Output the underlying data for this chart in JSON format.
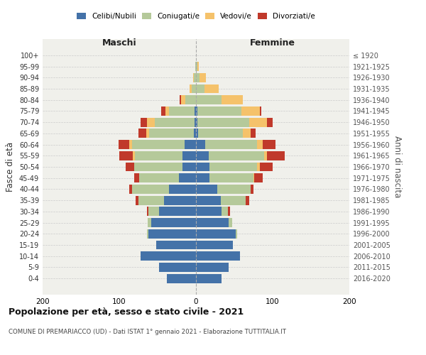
{
  "age_groups": [
    "100+",
    "95-99",
    "90-94",
    "85-89",
    "80-84",
    "75-79",
    "70-74",
    "65-69",
    "60-64",
    "55-59",
    "50-54",
    "45-49",
    "40-44",
    "35-39",
    "30-34",
    "25-29",
    "20-24",
    "15-19",
    "10-14",
    "5-9",
    "0-4"
  ],
  "birth_years": [
    "≤ 1920",
    "1921-1925",
    "1926-1930",
    "1931-1935",
    "1936-1940",
    "1941-1945",
    "1946-1950",
    "1951-1955",
    "1956-1960",
    "1961-1965",
    "1966-1970",
    "1971-1975",
    "1976-1980",
    "1981-1985",
    "1986-1990",
    "1991-1995",
    "1996-2000",
    "2001-2005",
    "2006-2010",
    "2011-2015",
    "2016-2020"
  ],
  "males_celibi": [
    0,
    0,
    0,
    0,
    0,
    2,
    2,
    3,
    15,
    18,
    18,
    22,
    35,
    42,
    48,
    58,
    62,
    52,
    72,
    48,
    38
  ],
  "males_coniugati": [
    0,
    1,
    3,
    6,
    14,
    33,
    52,
    58,
    68,
    62,
    63,
    52,
    48,
    33,
    14,
    5,
    2,
    0,
    0,
    0,
    0
  ],
  "males_vedovi": [
    0,
    0,
    1,
    2,
    5,
    5,
    10,
    4,
    4,
    2,
    0,
    0,
    0,
    0,
    0,
    0,
    0,
    0,
    0,
    0,
    0
  ],
  "males_divorziati": [
    0,
    0,
    0,
    0,
    2,
    5,
    8,
    10,
    14,
    18,
    11,
    7,
    4,
    4,
    2,
    0,
    0,
    0,
    0,
    0,
    0
  ],
  "females_nubili": [
    0,
    0,
    0,
    0,
    0,
    2,
    2,
    3,
    12,
    17,
    18,
    18,
    28,
    32,
    33,
    43,
    52,
    48,
    57,
    43,
    33
  ],
  "females_coniugate": [
    0,
    2,
    5,
    11,
    33,
    57,
    67,
    58,
    68,
    72,
    62,
    57,
    43,
    33,
    9,
    4,
    2,
    0,
    0,
    0,
    0
  ],
  "females_vedove": [
    0,
    2,
    8,
    19,
    28,
    24,
    24,
    10,
    7,
    4,
    3,
    1,
    0,
    0,
    0,
    0,
    0,
    0,
    0,
    0,
    0
  ],
  "females_divorziate": [
    0,
    0,
    0,
    0,
    0,
    2,
    7,
    7,
    17,
    23,
    17,
    11,
    4,
    4,
    2,
    0,
    0,
    0,
    0,
    0,
    0
  ],
  "color_celibi": "#4472a8",
  "color_coniugati": "#b5c99a",
  "color_vedovi": "#f5c26b",
  "color_divorziati": "#c0392b",
  "color_bg": "#f0f0eb",
  "color_fig_bg": "#ffffff",
  "color_grid": "#cccccc",
  "title": "Popolazione per età, sesso e stato civile - 2021",
  "subtitle": "COMUNE DI PREMARIACCO (UD) - Dati ISTAT 1° gennaio 2021 - Elaborazione TUTTITALIA.IT",
  "label_maschi": "Maschi",
  "label_femmine": "Femmine",
  "label_fasce": "Fasce di età",
  "label_anni": "Anni di nascita",
  "legend_labels": [
    "Celibi/Nubili",
    "Coniugati/e",
    "Vedovi/e",
    "Divorziati/e"
  ],
  "xlim": 200
}
